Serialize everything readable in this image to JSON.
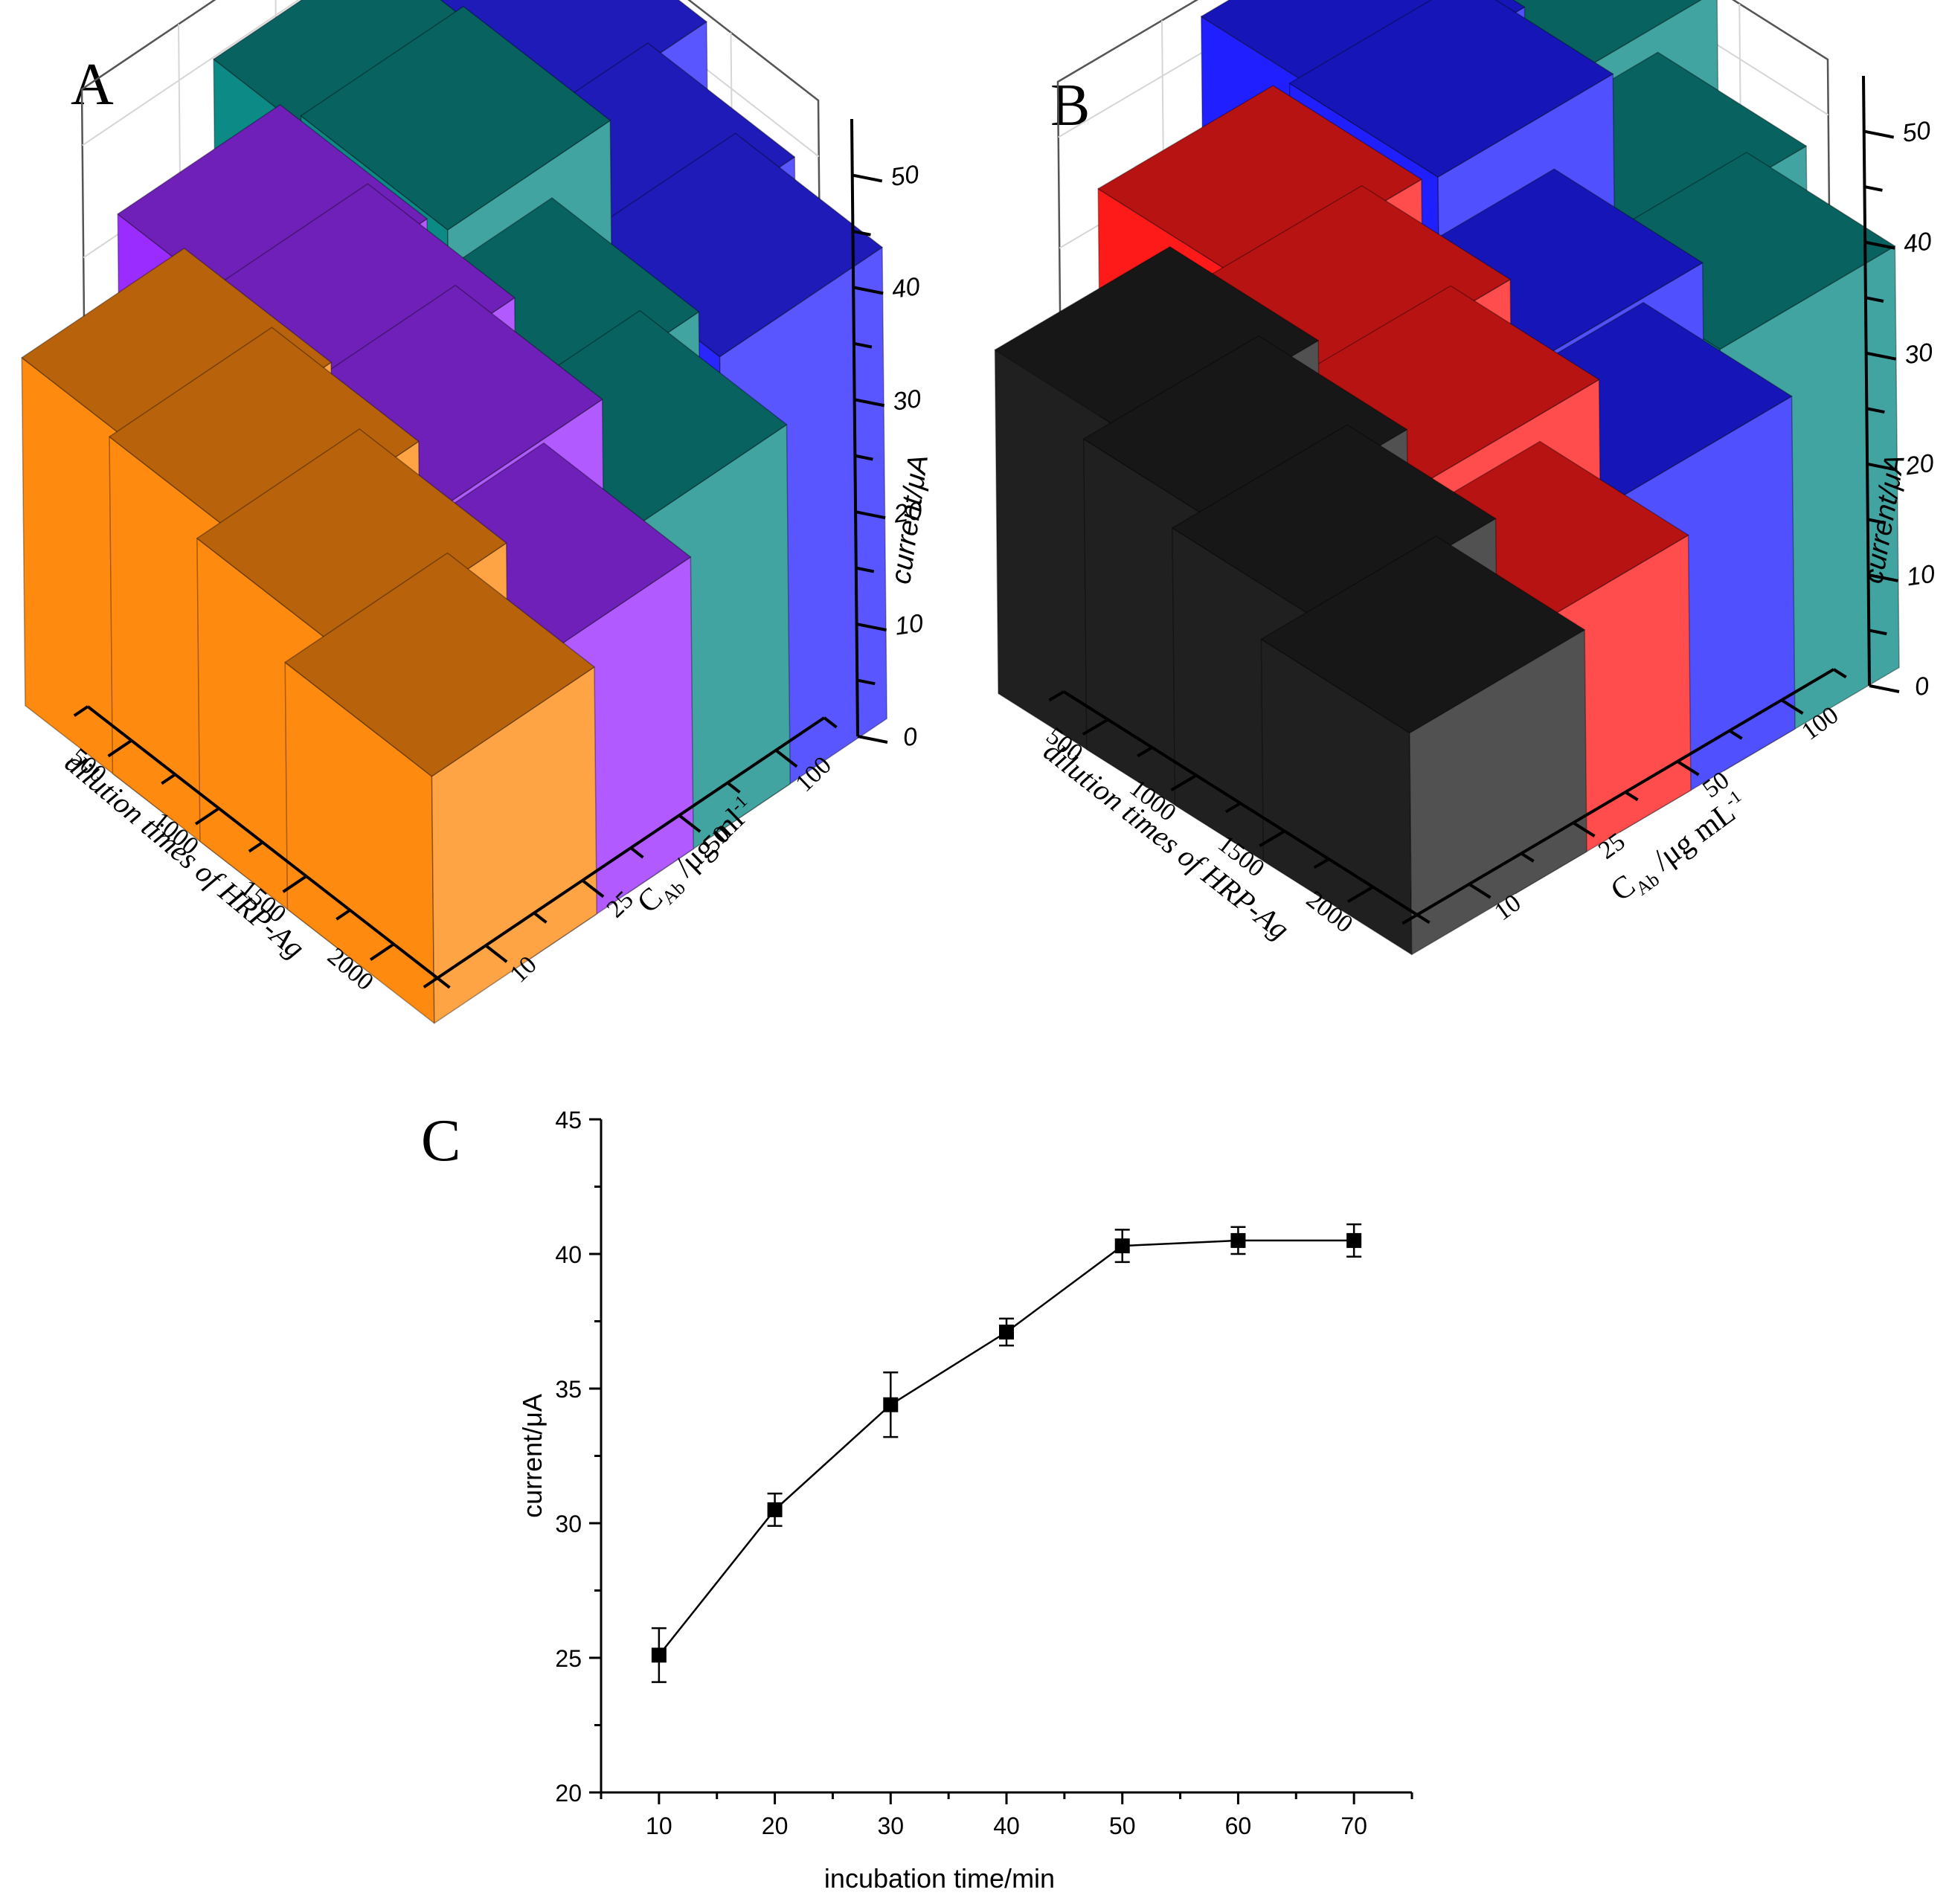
{
  "chart_data": [
    {
      "panel": "A",
      "type": "bar3d",
      "x_label": "dilution times of HRP-Ag",
      "x_categories": [
        "500",
        "1000",
        "1500",
        "2000"
      ],
      "y_label_main": "C",
      "y_label_sub": "Ab",
      "y_label_unit": " /μg ml",
      "y_label_sup": "-1",
      "y_categories": [
        "10",
        "25",
        "50",
        "100"
      ],
      "z_label": "current/μA",
      "z_ticks": [
        "0",
        "10",
        "20",
        "30",
        "40",
        "50"
      ],
      "z_range": [
        0,
        55
      ],
      "series": [
        {
          "name": "10",
          "color": "#ff8a10",
          "values": [
            31,
            30,
            27,
            22
          ]
        },
        {
          "name": "25",
          "color": "#9a2cff",
          "values": [
            38,
            37,
            34,
            26
          ]
        },
        {
          "name": "50",
          "color": "#0b8a86",
          "values": [
            46,
            47,
            36,
            32
          ]
        },
        {
          "name": "100",
          "color": "#2a26ff",
          "values": [
            52,
            50,
            44,
            42
          ]
        }
      ]
    },
    {
      "panel": "B",
      "type": "bar3d",
      "x_label": "dilution times of HRP-Ag",
      "x_categories": [
        "500",
        "1000",
        "1500",
        "2000"
      ],
      "y_label_main": "C",
      "y_label_sub": "Ab",
      "y_label_unit": " /μg mL",
      "y_label_sup": "-1",
      "y_categories": [
        "10",
        "25",
        "50",
        "100"
      ],
      "z_label": "current/μA",
      "z_ticks": [
        "0",
        "10",
        "20",
        "30",
        "40",
        "50"
      ],
      "z_range": [
        0,
        55
      ],
      "series": [
        {
          "name": "10",
          "color": "#202020",
          "values": [
            31,
            28,
            25,
            20
          ]
        },
        {
          "name": "25",
          "color": "#ff1a1a",
          "values": [
            40,
            36,
            32,
            23
          ]
        },
        {
          "name": "50",
          "color": "#1f1fff",
          "values": [
            50,
            49,
            37,
            30
          ]
        },
        {
          "name": "100",
          "color": "#0b8a86",
          "values": [
            53,
            51,
            42,
            38
          ]
        }
      ]
    },
    {
      "panel": "C",
      "type": "line",
      "x": [
        10,
        20,
        30,
        40,
        50,
        60,
        70
      ],
      "y": [
        25.1,
        30.5,
        34.4,
        37.1,
        40.3,
        40.5,
        40.5
      ],
      "error": [
        1.0,
        0.6,
        1.2,
        0.5,
        0.6,
        0.5,
        0.6
      ],
      "xlabel": "incubation time/min",
      "ylabel": "current/μA",
      "xlim": [
        5,
        75
      ],
      "ylim": [
        20,
        45
      ],
      "x_ticks": [
        "10",
        "20",
        "30",
        "40",
        "50",
        "60",
        "70"
      ],
      "y_ticks": [
        "20",
        "25",
        "30",
        "35",
        "40",
        "45"
      ],
      "marker": "square",
      "line_color": "#000000"
    }
  ]
}
